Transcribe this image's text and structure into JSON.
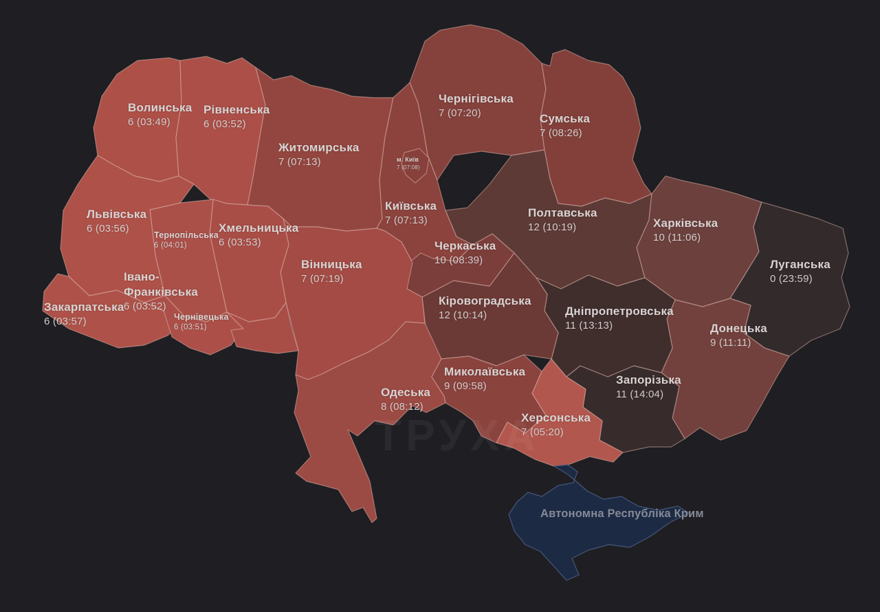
{
  "map": {
    "background": "#1f1e22",
    "border_color": "rgba(226,186,176,0.5)",
    "label_color": "#d9d4d3",
    "crimea_label_color": "#848a97",
    "watermark": "ТРУХА",
    "regions": [
      {
        "id": "chernihivska",
        "name": "Чернігівська",
        "alerts": 7,
        "time": "07:20",
        "fill": "#85413c"
      },
      {
        "id": "sumska",
        "name": "Сумська",
        "alerts": 7,
        "time": "08:26",
        "fill": "#83403b"
      },
      {
        "id": "volynska",
        "name": "Волинська",
        "alerts": 6,
        "time": "03:49",
        "fill": "#ac5048"
      },
      {
        "id": "rivnenska",
        "name": "Рівненська",
        "alerts": 6,
        "time": "03:52",
        "fill": "#ab4f48"
      },
      {
        "id": "zhytomyrska",
        "name": "Житомирська",
        "alerts": 7,
        "time": "07:13",
        "fill": "#93463f"
      },
      {
        "id": "kyivska",
        "name": "Київська",
        "alerts": 7,
        "time": "07:13",
        "fill": "#8c433d"
      },
      {
        "id": "kyiv-city",
        "name": "м. Київ",
        "alerts": 7,
        "time": "07:08",
        "fill": "#87403b"
      },
      {
        "id": "poltavska",
        "name": "Полтавська",
        "alerts": 12,
        "time": "10:19",
        "fill": "#5d3a36"
      },
      {
        "id": "kharkivska",
        "name": "Харківська",
        "alerts": 10,
        "time": "11:06",
        "fill": "#6c403d"
      },
      {
        "id": "luhanska",
        "name": "Луганська",
        "alerts": 0,
        "time": "23:59",
        "fill": "#332a2c"
      },
      {
        "id": "donetska",
        "name": "Донецька",
        "alerts": 9,
        "time": "11:11",
        "fill": "#73413d"
      },
      {
        "id": "dnipropetrovska",
        "name": "Дніпропетровська",
        "alerts": 11,
        "time": "13:13",
        "fill": "#402e2d"
      },
      {
        "id": "zaporizka",
        "name": "Запорізька",
        "alerts": 11,
        "time": "14:04",
        "fill": "#382b2b"
      },
      {
        "id": "kirovohradska",
        "name": "Кіровоградська",
        "alerts": 12,
        "time": "10:14",
        "fill": "#6c3a36"
      },
      {
        "id": "cherkaska",
        "name": "Черкаська",
        "alerts": 10,
        "time": "08:39",
        "fill": "#7c3e3b"
      },
      {
        "id": "vinnytska",
        "name": "Вінницька",
        "alerts": 7,
        "time": "07:19",
        "fill": "#a34b44"
      },
      {
        "id": "khmelnytska",
        "name": "Хмельницька",
        "alerts": 6,
        "time": "03:53",
        "fill": "#a94e47"
      },
      {
        "id": "ternopilska",
        "name": "Тернопільська",
        "alerts": 6,
        "time": "04:01",
        "fill": "#ab5049"
      },
      {
        "id": "lvivska",
        "name": "Львівська",
        "alerts": 6,
        "time": "03:56",
        "fill": "#ae5149"
      },
      {
        "id": "zakarpatska",
        "name": "Закарпатська",
        "alerts": 6,
        "time": "03:57",
        "fill": "#ae5249"
      },
      {
        "id": "ivano-frankivska",
        "name": "Івано-Франківська",
        "alerts": 6,
        "time": "03:52",
        "fill": "#ab4f48"
      },
      {
        "id": "chernivetska",
        "name": "Чернівецька",
        "alerts": 6,
        "time": "03:51",
        "fill": "#a94e47"
      },
      {
        "id": "odeska",
        "name": "Одеська",
        "alerts": 8,
        "time": "08:12",
        "fill": "#9c4a44"
      },
      {
        "id": "mykolaivska",
        "name": "Миколаївська",
        "alerts": 9,
        "time": "09:58",
        "fill": "#8b433e"
      },
      {
        "id": "khersonska",
        "name": "Херсонська",
        "alerts": 7,
        "time": "05:20",
        "fill": "#b2574e"
      },
      {
        "id": "crimea",
        "name": "Автономна Республіка Крим",
        "fill": "#1d2a44",
        "stroke": "#45587a"
      }
    ]
  }
}
